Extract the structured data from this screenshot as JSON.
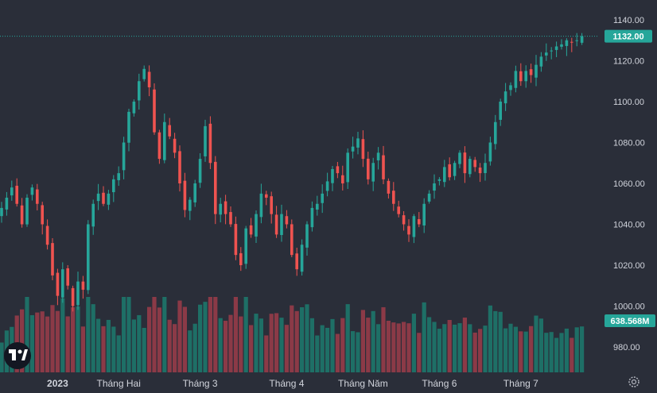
{
  "chart_data": {
    "type": "candlestick",
    "ylim": [
      970,
      1145
    ],
    "yticks": [
      1140,
      1120,
      1100,
      1080,
      1060,
      1040,
      1020,
      1000,
      980
    ],
    "ytick_labels": [
      "1140.00",
      "1120.00",
      "1100.00",
      "1080.00",
      "1060.00",
      "1040.00",
      "1020.00",
      "1000.00",
      "980.00"
    ],
    "xticks": [
      {
        "label": "2023",
        "index": 11,
        "bold": true
      },
      {
        "label": "Tháng Hai",
        "index": 23,
        "bold": false
      },
      {
        "label": "Tháng 3",
        "index": 39,
        "bold": false
      },
      {
        "label": "Tháng 4",
        "index": 56,
        "bold": false
      },
      {
        "label": "Tháng Năm",
        "index": 71,
        "bold": false
      },
      {
        "label": "Tháng 6",
        "index": 86,
        "bold": false
      },
      {
        "label": "Tháng 7",
        "index": 102,
        "bold": false
      }
    ],
    "last_price": "1132.00",
    "last_price_value": 1132,
    "last_volume": "638.568M",
    "colors": {
      "up": "#26a69a",
      "down": "#ef5350",
      "vol_up": "#1e6f66",
      "vol_down": "#8b3a47",
      "bg": "#2a2e39"
    },
    "close": [
      1048,
      1053,
      1058,
      1050,
      1040,
      1053,
      1058,
      1050,
      1040,
      1030,
      1015,
      1005,
      1018,
      1010,
      1000,
      1012,
      1008,
      1040,
      1050,
      1055,
      1050,
      1055,
      1062,
      1065,
      1080,
      1095,
      1100,
      1110,
      1116,
      1107,
      1085,
      1072,
      1090,
      1083,
      1075,
      1060,
      1047,
      1052,
      1060,
      1072,
      1088,
      1070,
      1045,
      1050,
      1045,
      1040,
      1025,
      1020,
      1038,
      1035,
      1045,
      1055,
      1053,
      1045,
      1035,
      1045,
      1040,
      1025,
      1018,
      1030,
      1040,
      1048,
      1050,
      1055,
      1061,
      1067,
      1065,
      1060,
      1075,
      1078,
      1082,
      1072,
      1062,
      1070,
      1075,
      1062,
      1055,
      1050,
      1045,
      1040,
      1035,
      1044,
      1040,
      1050,
      1055,
      1060,
      1062,
      1068,
      1063,
      1070,
      1075,
      1065,
      1072,
      1068,
      1065,
      1070,
      1080,
      1090,
      1100,
      1105,
      1108,
      1115,
      1110,
      1115,
      1113,
      1118,
      1122,
      1124,
      1125,
      1127,
      1128,
      1130,
      1129,
      1130,
      1132
    ]
  },
  "price_label": "1132.00",
  "volume_label": "638.568M"
}
